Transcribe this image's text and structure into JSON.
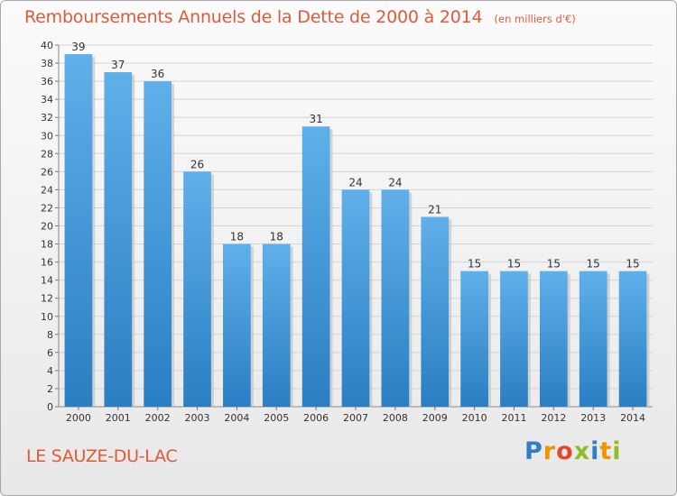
{
  "title": "Remboursements Annuels de la Dette de 2000 à 2014",
  "unit_note": "(en milliers d'€)",
  "commune": "LE SAUZE-DU-LAC",
  "logo_text": "Proxiti",
  "colors": {
    "title": "#e05a3a",
    "bar_top": "#5fb0ea",
    "bar_bottom": "#2a7ec2",
    "grid": "#d4d4d4"
  },
  "chart_data": {
    "type": "bar",
    "categories": [
      "2000",
      "2001",
      "2002",
      "2003",
      "2004",
      "2005",
      "2006",
      "2007",
      "2008",
      "2009",
      "2010",
      "2011",
      "2012",
      "2013",
      "2014"
    ],
    "values": [
      39,
      37,
      36,
      26,
      18,
      18,
      31,
      24,
      24,
      21,
      15,
      15,
      15,
      15,
      15
    ],
    "yticks": [
      0,
      2,
      4,
      6,
      8,
      10,
      12,
      14,
      16,
      18,
      20,
      22,
      24,
      26,
      28,
      30,
      32,
      34,
      36,
      38,
      40
    ],
    "ylim": [
      0,
      40
    ],
    "grid": true,
    "data_labels": true
  }
}
